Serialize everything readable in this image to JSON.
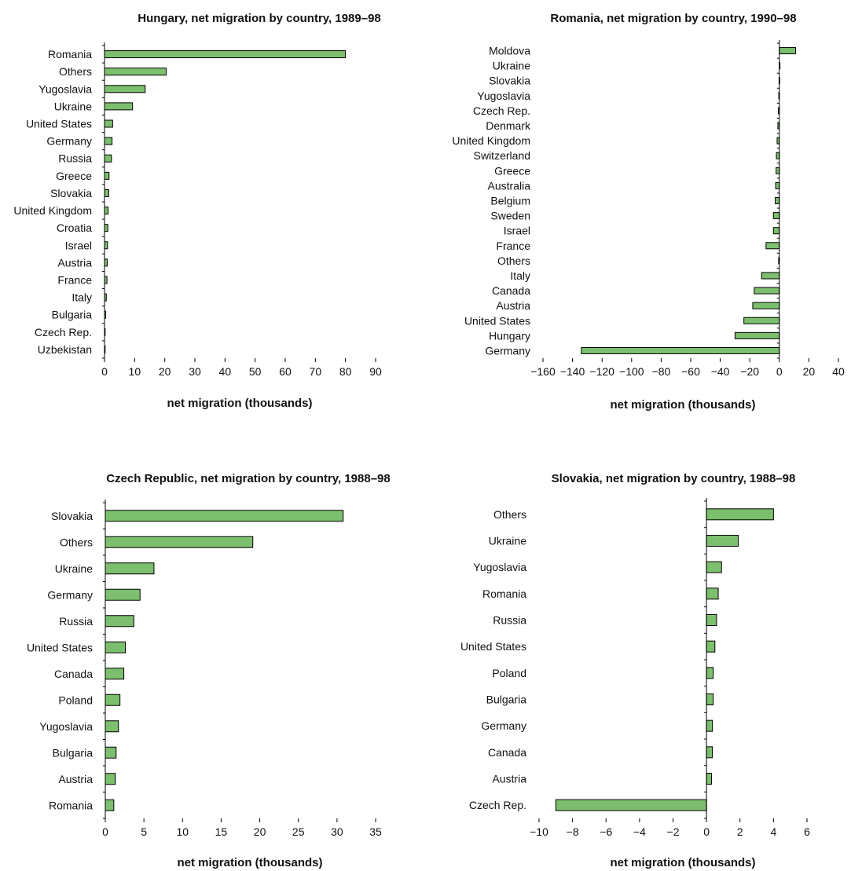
{
  "colors": {
    "bar_fill": "#7cbf6e",
    "bar_stroke": "#000000",
    "axis": "#000000",
    "text": "#111111"
  },
  "chart_data": [
    {
      "type": "bar",
      "orientation": "horizontal",
      "title": "Hungary, net migration by country, 1989–98",
      "xlabel": "net migration (thousands)",
      "ylabel": "",
      "xlim": [
        0,
        90
      ],
      "xticks": [
        0,
        10,
        20,
        30,
        40,
        50,
        60,
        70,
        80,
        90
      ],
      "xtick_labels": [
        "0",
        "10",
        "20",
        "30",
        "40",
        "50",
        "60",
        "70",
        "80",
        "90"
      ],
      "categories": [
        "Romania",
        "Others",
        "Yugoslavia",
        "Ukraine",
        "United States",
        "Germany",
        "Russia",
        "Greece",
        "Slovakia",
        "United Kingdom",
        "Croatia",
        "Israel",
        "Austria",
        "France",
        "Italy",
        "Bulgaria",
        "Czech Rep.",
        "Uzbekistan"
      ],
      "values": [
        80,
        20.5,
        13.5,
        9.3,
        2.7,
        2.5,
        2.3,
        1.5,
        1.4,
        1.2,
        1.1,
        1.0,
        0.9,
        0.8,
        0.6,
        0.4,
        0.2,
        0.1
      ],
      "grid": false,
      "legend": "none"
    },
    {
      "type": "bar",
      "orientation": "horizontal",
      "title": "Romania, net migration by country, 1990–98",
      "xlabel": "net migration (thousands)",
      "ylabel": "",
      "xlim": [
        -160,
        40
      ],
      "xticks": [
        -160,
        -140,
        -120,
        -100,
        -80,
        -60,
        -40,
        -20,
        0,
        20,
        40
      ],
      "xtick_labels": [
        "−160",
        "−140",
        "−120",
        "−100",
        "−80",
        "−60",
        "−40",
        "−20",
        "0",
        "20",
        "40"
      ],
      "categories": [
        "Moldova",
        "Ukraine",
        "Slovakia",
        "Yugoslavia",
        "Czech Rep.",
        "Denmark",
        "United Kingdom",
        "Switzerland",
        "Greece",
        "Australia",
        "Belgium",
        "Sweden",
        "Israel",
        "France",
        "Others",
        "Italy",
        "Canada",
        "Austria",
        "United States",
        "Hungary",
        "Germany"
      ],
      "values": [
        11,
        0.2,
        -0.2,
        -0.4,
        -0.6,
        -1,
        -1.5,
        -2,
        -2.2,
        -2.5,
        -2.8,
        -4,
        -4,
        -9,
        -0.5,
        -12,
        -17,
        -18,
        -24,
        -30,
        -134
      ],
      "grid": false,
      "legend": "none"
    },
    {
      "type": "bar",
      "orientation": "horizontal",
      "title": "Czech Republic, net migration by country, 1988–98",
      "xlabel": "net migration (thousands)",
      "ylabel": "",
      "xlim": [
        0,
        35
      ],
      "xticks": [
        0,
        5,
        10,
        15,
        20,
        25,
        30,
        35
      ],
      "xtick_labels": [
        "0",
        "5",
        "10",
        "15",
        "20",
        "25",
        "30",
        "35"
      ],
      "categories": [
        "Slovakia",
        "Others",
        "Ukraine",
        "Germany",
        "Russia",
        "United States",
        "Canada",
        "Poland",
        "Yugoslavia",
        "Bulgaria",
        "Austria",
        "Romania"
      ],
      "values": [
        30.8,
        19.1,
        6.3,
        4.5,
        3.7,
        2.6,
        2.4,
        1.9,
        1.7,
        1.4,
        1.3,
        1.1
      ],
      "grid": false,
      "legend": "none"
    },
    {
      "type": "bar",
      "orientation": "horizontal",
      "title": "Slovakia, net migration by country, 1988–98",
      "xlabel": "net migration (thousands)",
      "ylabel": "",
      "xlim": [
        -10,
        6
      ],
      "xticks": [
        -10,
        -8,
        -6,
        -4,
        -2,
        0,
        2,
        4,
        6
      ],
      "xtick_labels": [
        "−10",
        "−8",
        "−6",
        "−4",
        "−2",
        "0",
        "2",
        "4",
        "6"
      ],
      "categories": [
        "Others",
        "Ukraine",
        "Yugoslavia",
        "Romania",
        "Russia",
        "United States",
        "Poland",
        "Bulgaria",
        "Germany",
        "Canada",
        "Austria",
        "Czech Rep."
      ],
      "values": [
        4.0,
        1.9,
        0.9,
        0.7,
        0.6,
        0.5,
        0.4,
        0.4,
        0.35,
        0.35,
        0.3,
        -9.0
      ],
      "grid": false,
      "legend": "none"
    }
  ]
}
